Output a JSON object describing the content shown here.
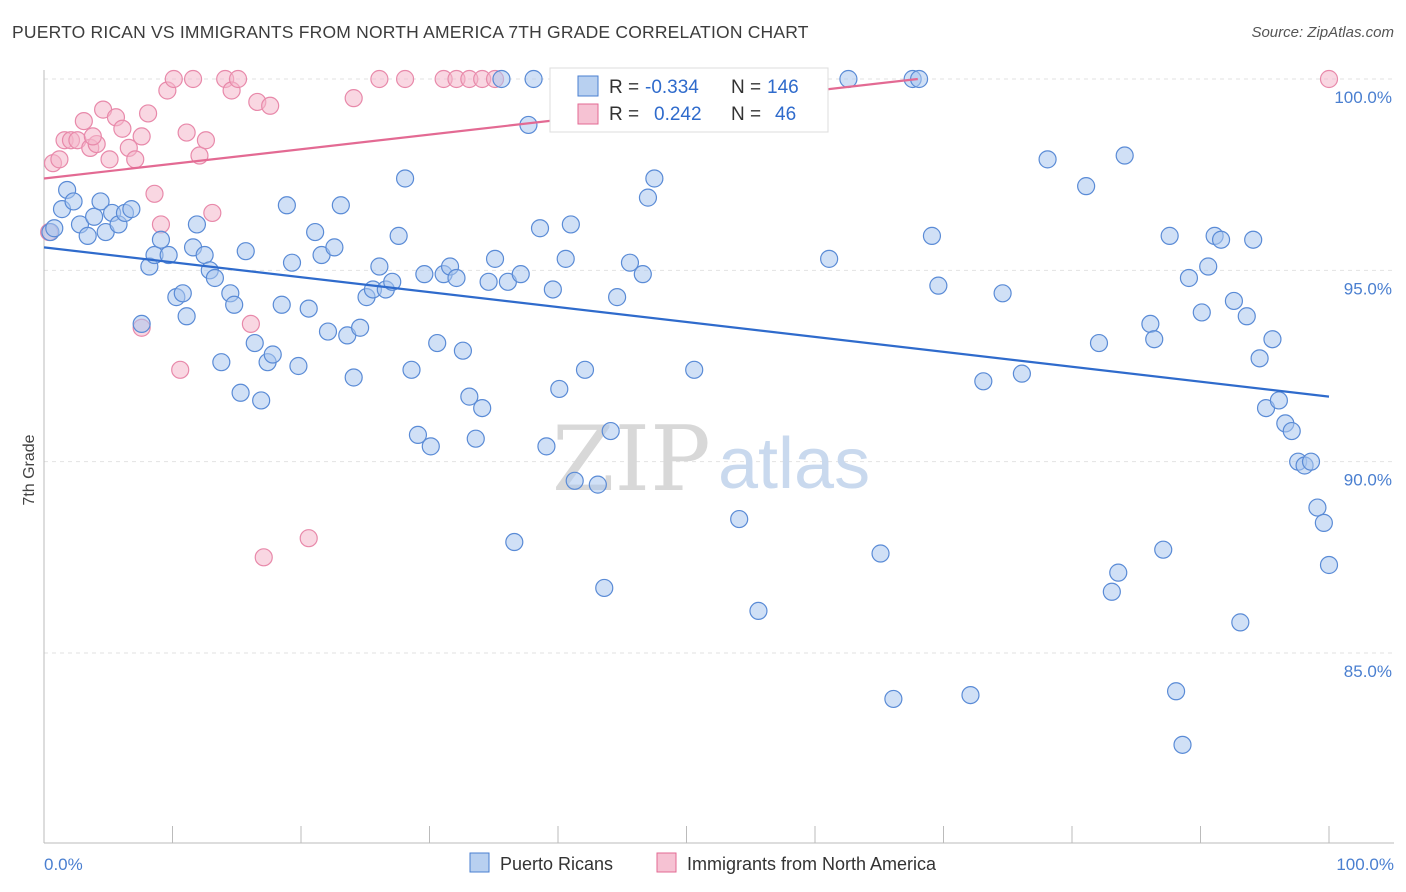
{
  "header": {
    "title": "PUERTO RICAN VS IMMIGRANTS FROM NORTH AMERICA 7TH GRADE CORRELATION CHART",
    "source": "Source: ZipAtlas.com"
  },
  "watermark": {
    "zip": "ZIP",
    "atlas": "atlas"
  },
  "colors": {
    "blue": "#4a7fd0",
    "blue_fill": "#a9c6ee",
    "pink": "#e36a93",
    "pink_fill": "#f4b6ca"
  },
  "chart_data": {
    "type": "scatter",
    "title": "PUERTO RICAN VS IMMIGRANTS FROM NORTH AMERICA 7TH GRADE CORRELATION CHART",
    "ylabel": "7th Grade",
    "xlabel": "",
    "xlim": [
      0,
      100
    ],
    "ylim": [
      80.0,
      100.8
    ],
    "x_tick_labels": [
      "0.0%",
      "100.0%"
    ],
    "y_ticks": [
      {
        "value": 100,
        "label": "100.0%"
      },
      {
        "value": 95,
        "label": "95.0%"
      },
      {
        "value": 90,
        "label": "90.0%"
      },
      {
        "value": 85,
        "label": "85.0%"
      }
    ],
    "grid": "horizontal dashed",
    "legend": {
      "position": "top-center",
      "rows": [
        {
          "r_label": "R =",
          "r": "-0.334",
          "n_label": "N =",
          "n": "146"
        },
        {
          "r_label": "R =",
          "r": "0.242",
          "n_label": "N =",
          "n": "46"
        }
      ]
    },
    "series": [
      {
        "name": "Puerto Ricans",
        "trend": {
          "x": [
            0,
            100
          ],
          "y": [
            95.6,
            91.7
          ]
        },
        "points": [
          [
            0.5,
            96.0
          ],
          [
            0.8,
            96.1
          ],
          [
            1.4,
            96.6
          ],
          [
            1.8,
            97.1
          ],
          [
            2.3,
            96.8
          ],
          [
            2.8,
            96.2
          ],
          [
            3.4,
            95.9
          ],
          [
            3.9,
            96.4
          ],
          [
            4.4,
            96.8
          ],
          [
            4.8,
            96.0
          ],
          [
            5.3,
            96.5
          ],
          [
            5.8,
            96.2
          ],
          [
            6.3,
            96.5
          ],
          [
            6.8,
            96.6
          ],
          [
            7.6,
            93.6
          ],
          [
            8.2,
            95.1
          ],
          [
            8.6,
            95.4
          ],
          [
            9.1,
            95.8
          ],
          [
            9.7,
            95.4
          ],
          [
            10.3,
            94.3
          ],
          [
            10.8,
            94.4
          ],
          [
            11.1,
            93.8
          ],
          [
            11.6,
            95.6
          ],
          [
            11.9,
            96.2
          ],
          [
            12.5,
            95.4
          ],
          [
            12.9,
            95.0
          ],
          [
            13.3,
            94.8
          ],
          [
            13.8,
            92.6
          ],
          [
            14.5,
            94.4
          ],
          [
            14.8,
            94.1
          ],
          [
            15.3,
            91.8
          ],
          [
            15.7,
            95.5
          ],
          [
            16.4,
            93.1
          ],
          [
            16.9,
            91.6
          ],
          [
            17.4,
            92.6
          ],
          [
            17.8,
            92.8
          ],
          [
            18.5,
            94.1
          ],
          [
            18.9,
            96.7
          ],
          [
            19.3,
            95.2
          ],
          [
            19.8,
            92.5
          ],
          [
            20.6,
            94.0
          ],
          [
            21.1,
            96.0
          ],
          [
            21.6,
            95.4
          ],
          [
            22.1,
            93.4
          ],
          [
            22.6,
            95.6
          ],
          [
            23.1,
            96.7
          ],
          [
            23.6,
            93.3
          ],
          [
            24.1,
            92.2
          ],
          [
            24.6,
            93.5
          ],
          [
            25.1,
            94.3
          ],
          [
            25.6,
            94.5
          ],
          [
            26.1,
            95.1
          ],
          [
            26.6,
            94.5
          ],
          [
            27.1,
            94.7
          ],
          [
            27.6,
            95.9
          ],
          [
            28.1,
            97.4
          ],
          [
            28.6,
            92.4
          ],
          [
            29.1,
            90.7
          ],
          [
            29.6,
            94.9
          ],
          [
            30.1,
            90.4
          ],
          [
            30.6,
            93.1
          ],
          [
            31.1,
            94.9
          ],
          [
            31.6,
            95.1
          ],
          [
            32.1,
            94.8
          ],
          [
            32.6,
            92.9
          ],
          [
            33.1,
            91.7
          ],
          [
            33.6,
            90.6
          ],
          [
            34.1,
            91.4
          ],
          [
            34.6,
            94.7
          ],
          [
            35.1,
            95.3
          ],
          [
            35.6,
            100.0
          ],
          [
            36.1,
            94.7
          ],
          [
            36.6,
            87.9
          ],
          [
            37.1,
            94.9
          ],
          [
            37.7,
            98.8
          ],
          [
            38.1,
            100.0
          ],
          [
            38.6,
            96.1
          ],
          [
            39.1,
            90.4
          ],
          [
            39.6,
            94.5
          ],
          [
            40.1,
            91.9
          ],
          [
            40.6,
            95.3
          ],
          [
            41.0,
            96.2
          ],
          [
            41.3,
            89.5
          ],
          [
            42.1,
            92.4
          ],
          [
            43.1,
            89.4
          ],
          [
            43.6,
            86.7
          ],
          [
            44.1,
            90.8
          ],
          [
            44.6,
            94.3
          ],
          [
            45.6,
            95.2
          ],
          [
            46.1,
            100.0
          ],
          [
            46.6,
            94.9
          ],
          [
            47.0,
            96.9
          ],
          [
            47.5,
            97.4
          ],
          [
            48.1,
            100.0
          ],
          [
            50.6,
            92.4
          ],
          [
            51.1,
            100.0
          ],
          [
            52.6,
            100.0
          ],
          [
            54.1,
            88.5
          ],
          [
            55.6,
            86.1
          ],
          [
            57.1,
            100.0
          ],
          [
            58.1,
            100.0
          ],
          [
            61.1,
            95.3
          ],
          [
            62.6,
            100.0
          ],
          [
            65.1,
            87.6
          ],
          [
            66.1,
            83.8
          ],
          [
            67.6,
            100.0
          ],
          [
            68.1,
            100.0
          ],
          [
            69.1,
            95.9
          ],
          [
            69.6,
            94.6
          ],
          [
            72.1,
            83.9
          ],
          [
            73.1,
            92.1
          ],
          [
            74.6,
            94.4
          ],
          [
            76.1,
            92.3
          ],
          [
            78.1,
            97.9
          ],
          [
            81.1,
            97.2
          ],
          [
            82.1,
            93.1
          ],
          [
            83.1,
            86.6
          ],
          [
            83.6,
            87.1
          ],
          [
            84.1,
            98.0
          ],
          [
            86.1,
            93.6
          ],
          [
            86.4,
            93.2
          ],
          [
            87.1,
            87.7
          ],
          [
            87.6,
            95.9
          ],
          [
            88.1,
            84.0
          ],
          [
            88.6,
            82.6
          ],
          [
            89.1,
            94.8
          ],
          [
            90.1,
            93.9
          ],
          [
            90.6,
            95.1
          ],
          [
            91.1,
            95.9
          ],
          [
            91.6,
            95.8
          ],
          [
            92.6,
            94.2
          ],
          [
            93.1,
            85.8
          ],
          [
            93.6,
            93.8
          ],
          [
            94.1,
            95.8
          ],
          [
            94.6,
            92.7
          ],
          [
            95.1,
            91.4
          ],
          [
            95.6,
            93.2
          ],
          [
            96.1,
            91.6
          ],
          [
            96.6,
            91.0
          ],
          [
            97.1,
            90.8
          ],
          [
            97.6,
            90.0
          ],
          [
            98.1,
            89.9
          ],
          [
            98.6,
            90.0
          ],
          [
            99.1,
            88.8
          ],
          [
            99.6,
            88.4
          ],
          [
            100.0,
            87.3
          ]
        ]
      },
      {
        "name": "Immigrants from North America",
        "trend": {
          "x": [
            0,
            68
          ],
          "y": [
            97.4,
            100.0
          ]
        },
        "points": [
          [
            0.4,
            96.0
          ],
          [
            0.7,
            97.8
          ],
          [
            1.2,
            97.9
          ],
          [
            1.6,
            98.4
          ],
          [
            2.1,
            98.4
          ],
          [
            2.6,
            98.4
          ],
          [
            3.1,
            98.9
          ],
          [
            3.6,
            98.2
          ],
          [
            4.1,
            98.3
          ],
          [
            4.6,
            99.2
          ],
          [
            5.1,
            97.9
          ],
          [
            5.6,
            99.0
          ],
          [
            6.1,
            98.7
          ],
          [
            6.6,
            98.2
          ],
          [
            7.1,
            97.9
          ],
          [
            7.6,
            98.5
          ],
          [
            8.1,
            99.1
          ],
          [
            8.6,
            97.0
          ],
          [
            9.1,
            96.2
          ],
          [
            9.6,
            99.7
          ],
          [
            10.1,
            100.0
          ],
          [
            10.6,
            92.4
          ],
          [
            11.1,
            98.6
          ],
          [
            11.6,
            100.0
          ],
          [
            12.1,
            98.0
          ],
          [
            12.6,
            98.4
          ],
          [
            13.1,
            96.5
          ],
          [
            14.1,
            100.0
          ],
          [
            14.6,
            99.7
          ],
          [
            15.1,
            100.0
          ],
          [
            16.1,
            93.6
          ],
          [
            16.6,
            99.4
          ],
          [
            17.1,
            87.5
          ],
          [
            17.6,
            99.3
          ],
          [
            20.6,
            88.0
          ],
          [
            24.1,
            99.5
          ],
          [
            26.1,
            100.0
          ],
          [
            28.1,
            100.0
          ],
          [
            31.1,
            100.0
          ],
          [
            32.1,
            100.0
          ],
          [
            33.1,
            100.0
          ],
          [
            34.1,
            100.0
          ],
          [
            35.1,
            100.0
          ],
          [
            7.6,
            93.5
          ],
          [
            3.8,
            98.5
          ],
          [
            100.0,
            100.0
          ]
        ]
      }
    ]
  },
  "legend_bottom": [
    {
      "label": "Puerto Ricans"
    },
    {
      "label": "Immigrants from North America"
    }
  ]
}
